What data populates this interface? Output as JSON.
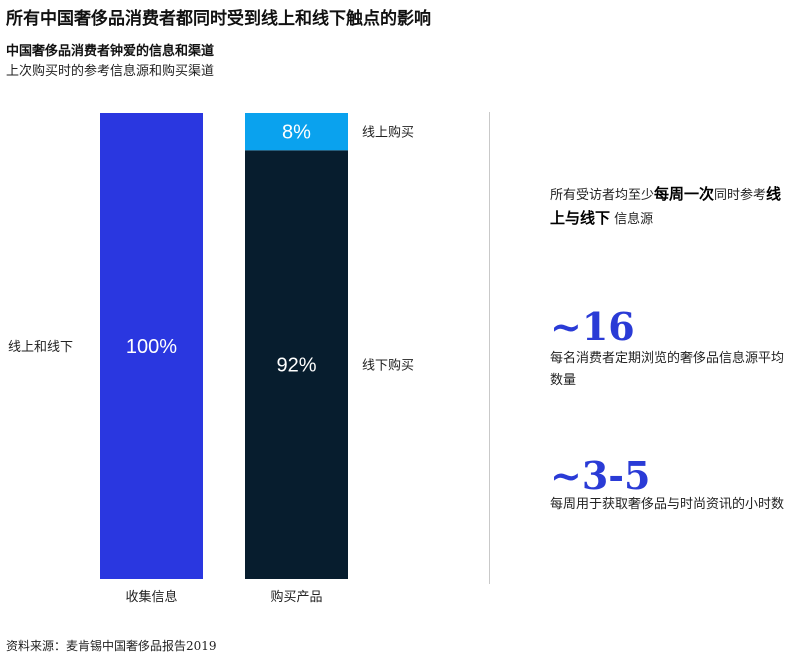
{
  "page": {
    "title": "所有中国奢侈品消费者都同时受到线上和线下触点的影响",
    "source": "资料来源：麦肯锡中国奢侈品报告2019"
  },
  "chart_data": {
    "type": "bar",
    "stacked": true,
    "title": "中国奢侈品消费者钟爱的信息和渠道",
    "subtitle": "上次购买时的参考信息源和购买渠道",
    "categories": [
      "收集信息",
      "购买产品"
    ],
    "series": [
      {
        "name": "线上和线下",
        "values": [
          100,
          null
        ],
        "color": "#2a37e0"
      },
      {
        "name": "线下购买",
        "values": [
          null,
          92
        ],
        "color": "#071d2e"
      },
      {
        "name": "线上购买",
        "values": [
          null,
          8
        ],
        "color": "#0aa2ee"
      }
    ],
    "data_labels": [
      "100%",
      "92%",
      "8%"
    ],
    "unit": "%",
    "ylim": [
      0,
      100
    ]
  },
  "callouts": {
    "c1_pre": "所有受访者均至少",
    "c1_bold1": "每周一次",
    "c1_mid": "同时参考",
    "c1_bold2": "线上与线下",
    "c1_post": "信息源",
    "stat1_value": "~16",
    "stat1_desc": "每名消费者定期浏览的奢侈品信息源平均数量",
    "stat2_value": "~3-5",
    "stat2_desc": "每周用于获取奢侈品与时尚资讯的小时数"
  }
}
